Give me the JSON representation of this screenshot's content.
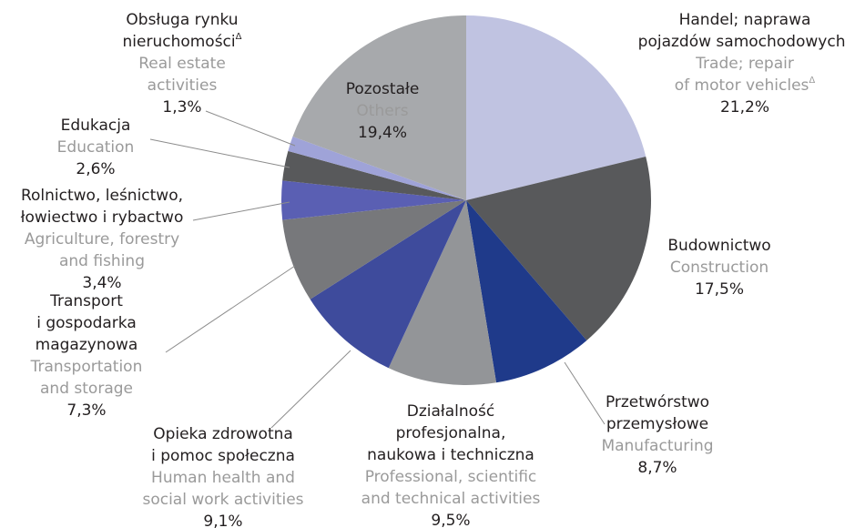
{
  "chart_data": {
    "type": "pie",
    "categories": [
      [
        "Handel; naprawa",
        "pojazdów samochodowychΔ"
      ],
      [
        "Budownictwo"
      ],
      [
        "Przetwórstwo",
        "przemysłowe"
      ],
      [
        "Działalność",
        "profesjonalna,",
        "naukowa i techniczna"
      ],
      [
        "Opieka zdrowotna",
        "i pomoc społeczna"
      ],
      [
        "Transport",
        "i gospodarka",
        "magazynowa"
      ],
      [
        "Rolnictwo, leśnictwo,",
        "łowiectwo i rybactwo"
      ],
      [
        "Edukacja"
      ],
      [
        "Obsługa rynku",
        "nieruchomościΔ"
      ],
      [
        "Pozostałe"
      ]
    ],
    "categories_en": [
      [
        "Trade; repair",
        "of motor vehiclesΔ"
      ],
      [
        "Construction"
      ],
      [
        "Manufacturing"
      ],
      [
        "Professional, scientific",
        "and technical activities"
      ],
      [
        "Human health and",
        "social work activities"
      ],
      [
        "Transportation",
        "and storage"
      ],
      [
        "Agriculture, forestry",
        "and fishing"
      ],
      [
        "Education"
      ],
      [
        "Real estate",
        "activities"
      ],
      [
        "Others"
      ]
    ],
    "values": [
      21.2,
      17.5,
      8.7,
      9.5,
      9.1,
      7.3,
      3.4,
      2.6,
      1.3,
      19.4
    ],
    "value_labels": [
      "21,2%",
      "17,5%",
      "8,7%",
      "9,5%",
      "9,1%",
      "7,3%",
      "3,4%",
      "2,6%",
      "1,3%",
      "19,4%"
    ],
    "colors": [
      "#c0c3e1",
      "#58595b",
      "#1f3a8a",
      "#939598",
      "#3e4b9c",
      "#77787b",
      "#5a5fb3",
      "#58595b",
      "#9fa3d8",
      "#a7a9ac"
    ]
  }
}
